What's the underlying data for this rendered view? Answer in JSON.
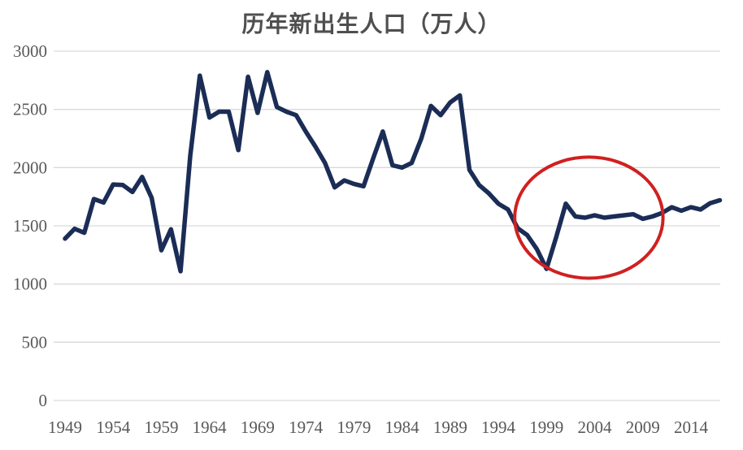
{
  "chart": {
    "title": "历年新出生人口（万人）",
    "colors": {
      "line": "#1b2d56",
      "annotation": "#d02020",
      "grid": "#d9d9d9",
      "text": "#595959",
      "background": "#ffffff"
    }
  },
  "chart_data": {
    "type": "line",
    "title": "历年新出生人口（万人）",
    "xlabel": "",
    "ylabel": "",
    "ylim": [
      0,
      3000
    ],
    "y_ticks": [
      0,
      500,
      1000,
      1500,
      2000,
      2500,
      3000
    ],
    "x_ticks": [
      1949,
      1954,
      1959,
      1964,
      1969,
      1974,
      1979,
      1984,
      1989,
      1994,
      1999,
      2004,
      2009,
      2014
    ],
    "grid": "horizontal",
    "legend": "none",
    "x": [
      1949,
      1950,
      1951,
      1952,
      1953,
      1954,
      1955,
      1956,
      1957,
      1958,
      1959,
      1960,
      1961,
      1962,
      1963,
      1964,
      1965,
      1966,
      1967,
      1968,
      1969,
      1970,
      1971,
      1972,
      1973,
      1974,
      1975,
      1976,
      1977,
      1978,
      1979,
      1980,
      1981,
      1982,
      1983,
      1984,
      1985,
      1986,
      1987,
      1988,
      1989,
      1990,
      1991,
      1992,
      1993,
      1994,
      1995,
      1996,
      1997,
      1998,
      1999,
      2000,
      2001,
      2002,
      2003,
      2004,
      2005,
      2006,
      2007,
      2008,
      2009,
      2010,
      2011,
      2012,
      2013,
      2014,
      2015,
      2016,
      2017
    ],
    "values": [
      1390,
      1475,
      1440,
      1730,
      1700,
      1855,
      1850,
      1790,
      1920,
      1740,
      1290,
      1470,
      1110,
      2100,
      2790,
      2430,
      2480,
      2480,
      2150,
      2780,
      2470,
      2820,
      2520,
      2480,
      2450,
      2310,
      2180,
      2040,
      1830,
      1890,
      1860,
      1840,
      2080,
      2310,
      2020,
      2000,
      2040,
      2250,
      2530,
      2450,
      2560,
      2620,
      1980,
      1850,
      1780,
      1690,
      1640,
      1480,
      1420,
      1300,
      1130,
      1400,
      1690,
      1580,
      1570,
      1590,
      1570,
      1580,
      1590,
      1600,
      1560,
      1580,
      1610,
      1660,
      1630,
      1660,
      1640,
      1695,
      1720
    ],
    "annotations": [
      {
        "type": "ellipse",
        "center_year": 2003.4,
        "center_value": 1570,
        "radius_years": 7.7,
        "radius_value": 520,
        "color": "#d02020"
      }
    ]
  }
}
